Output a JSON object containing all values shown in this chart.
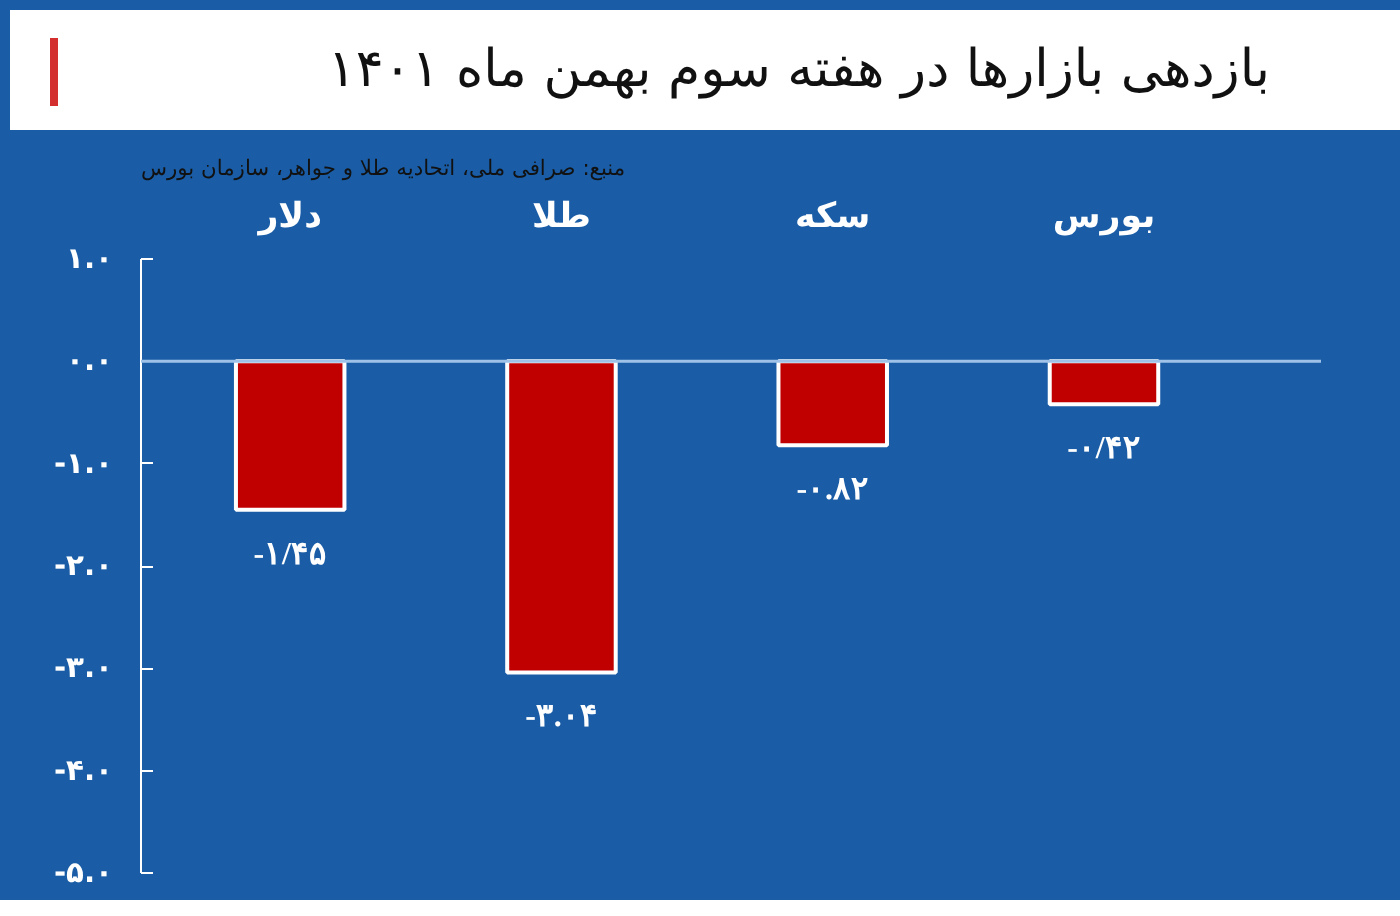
{
  "chart_data": {
    "type": "bar",
    "title": "بازدهی بازارها در هفته سوم بهمن ماه ۱۴۰۱",
    "annotations": [
      "منبع: صرافی ملی، اتحادیه طلا و جواهر، سازمان بورس"
    ],
    "categories": [
      "دلار",
      "طلا",
      "سکه",
      "بورس"
    ],
    "values": [
      -1.45,
      -3.04,
      -0.82,
      -0.42
    ],
    "value_labels": [
      "-۱/۴۵",
      "-۳.۰۴",
      "-۰.۸۲",
      "-۰/۴۲"
    ],
    "color": "#c00000",
    "ylim": [
      -5,
      1
    ],
    "yticks": [
      {
        "value": 1,
        "label": "۱.۰"
      },
      {
        "value": 0,
        "label": "۰.۰"
      },
      {
        "value": -1,
        "label": "-۱.۰"
      },
      {
        "value": -2,
        "label": "-۲.۰"
      },
      {
        "value": -3,
        "label": "-۳.۰"
      },
      {
        "value": -4,
        "label": "-۴.۰"
      },
      {
        "value": -5,
        "label": "-۵.۰"
      }
    ],
    "ref_lines": [
      {
        "axis": "y",
        "value": 0,
        "color": "#9fc3e8"
      }
    ],
    "grid": false
  }
}
